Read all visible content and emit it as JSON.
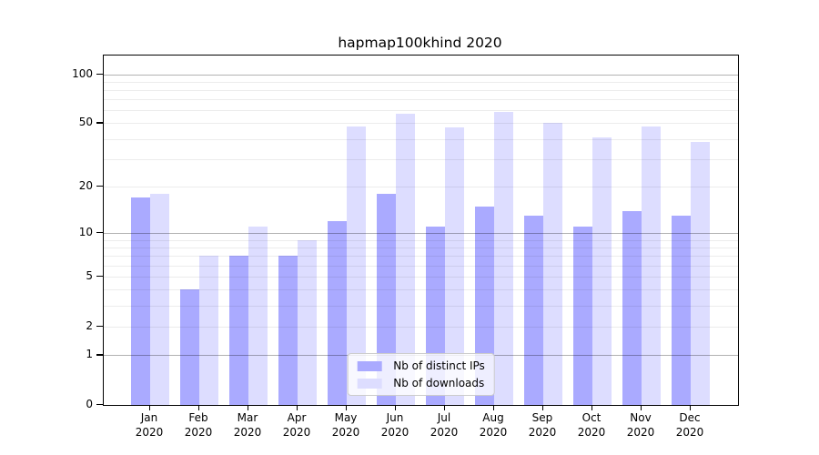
{
  "chart_data": {
    "type": "bar",
    "title": "hapmap100khind 2020",
    "categories": [
      "Jan",
      "Feb",
      "Mar",
      "Apr",
      "May",
      "Jun",
      "Jul",
      "Aug",
      "Sep",
      "Oct",
      "Nov",
      "Dec"
    ],
    "year_label": "2020",
    "series": [
      {
        "name": "Nb of distinct IPs",
        "color": "#aaaaff",
        "values": [
          17,
          4,
          7,
          7,
          12,
          18,
          11,
          15,
          13,
          11,
          14,
          13
        ]
      },
      {
        "name": "Nb of downloads",
        "color": "#ddddff",
        "values": [
          18,
          7,
          11,
          9,
          48,
          57,
          47,
          59,
          50,
          41,
          48,
          38
        ]
      }
    ],
    "xlabel": "",
    "ylabel": "",
    "y_scale": "log10(1+y)",
    "ylim": [
      0,
      130
    ],
    "y_ticks": [
      100,
      50,
      20,
      10,
      5,
      2,
      1,
      0
    ],
    "y_gridlines": {
      "major": [
        1,
        10,
        100
      ],
      "minor": [
        2,
        3,
        4,
        5,
        6,
        7,
        8,
        9,
        20,
        30,
        40,
        50,
        60,
        70,
        80,
        90
      ]
    },
    "grid": true,
    "legend_position": "lower center",
    "colors": {
      "axis": "#000000",
      "grid_major": "#b0b0b0",
      "grid_minor": "#e9e9e9",
      "legend_border": "#cccccc"
    }
  }
}
